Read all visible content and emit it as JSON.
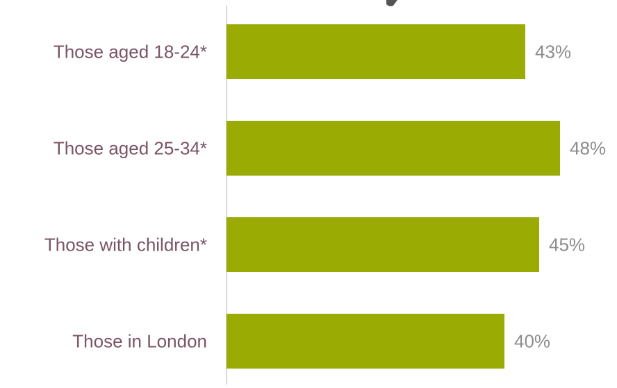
{
  "chart_data": {
    "type": "bar",
    "orientation": "horizontal",
    "categories": [
      "Those aged 18-24*",
      "Those aged 25-34*",
      "Those with children*",
      "Those in London"
    ],
    "values": [
      43,
      48,
      45,
      40
    ],
    "value_labels": [
      "43%",
      "48%",
      "45%",
      "40%"
    ],
    "xlim": [
      0,
      50
    ],
    "grid": false,
    "legend": "none"
  },
  "colors": {
    "bar": "#9aab04",
    "category_text": "#7b5466",
    "value_text": "#8c8c8c",
    "axis": "#d9d9d9"
  }
}
